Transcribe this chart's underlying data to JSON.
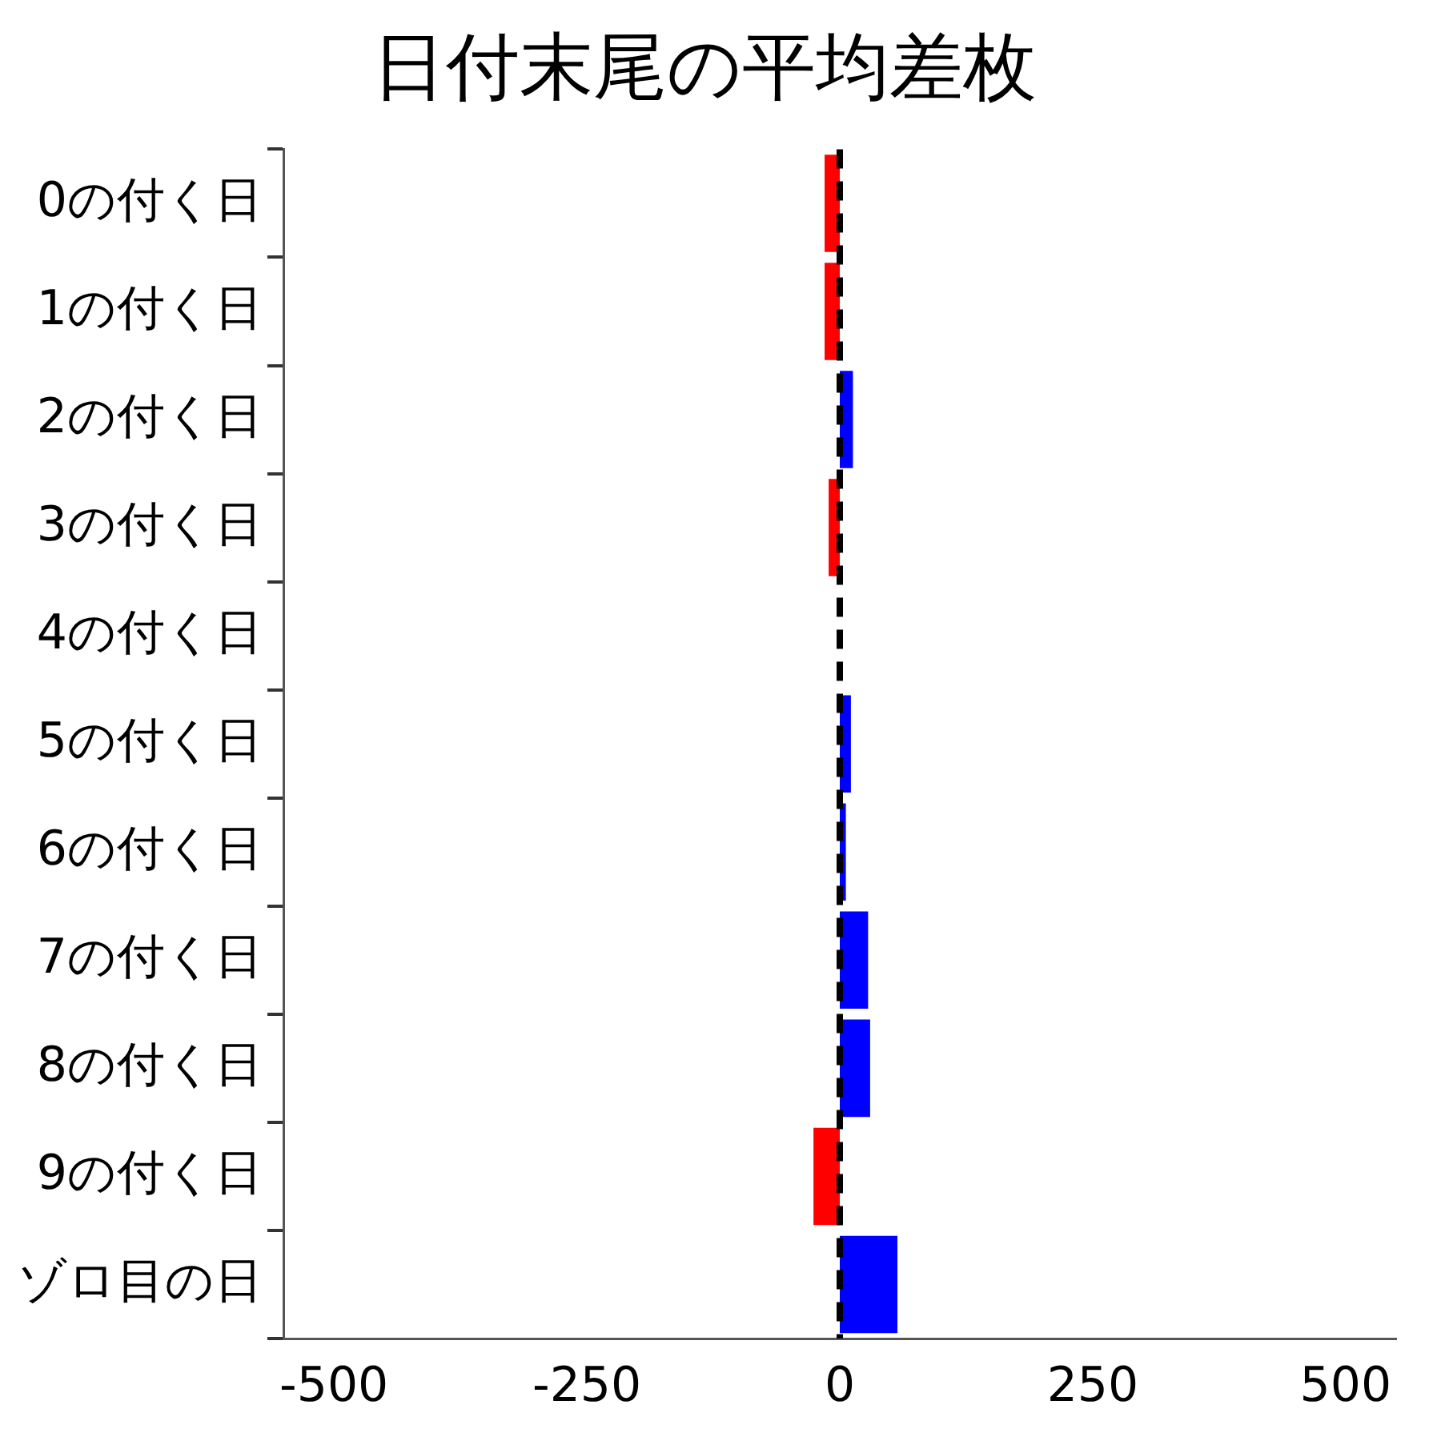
{
  "chart_data": {
    "type": "bar",
    "orientation": "horizontal",
    "title": "日付末尾の平均差枚",
    "categories": [
      "0の付く日",
      "1の付く日",
      "2の付く日",
      "3の付く日",
      "4の付く日",
      "5の付く日",
      "6の付く日",
      "7の付く日",
      "8の付く日",
      "9の付く日",
      "ゾロ目の日"
    ],
    "values": [
      -15,
      -15,
      13,
      -11,
      0,
      11,
      6,
      28,
      30,
      -26,
      57
    ],
    "colors": [
      "#ff0000",
      "#ff0000",
      "#0000ff",
      "#ff0000",
      "#0000ff",
      "#0000ff",
      "#0000ff",
      "#0000ff",
      "#0000ff",
      "#ff0000",
      "#0000ff"
    ],
    "xlim": [
      -550,
      550
    ],
    "xticks": [
      -500,
      -250,
      0,
      250,
      500
    ],
    "grid": false,
    "legend": false,
    "ref_lines": [
      {
        "axis": "x",
        "value": 0,
        "color": "#000000",
        "line_style": "dashed"
      }
    ]
  }
}
